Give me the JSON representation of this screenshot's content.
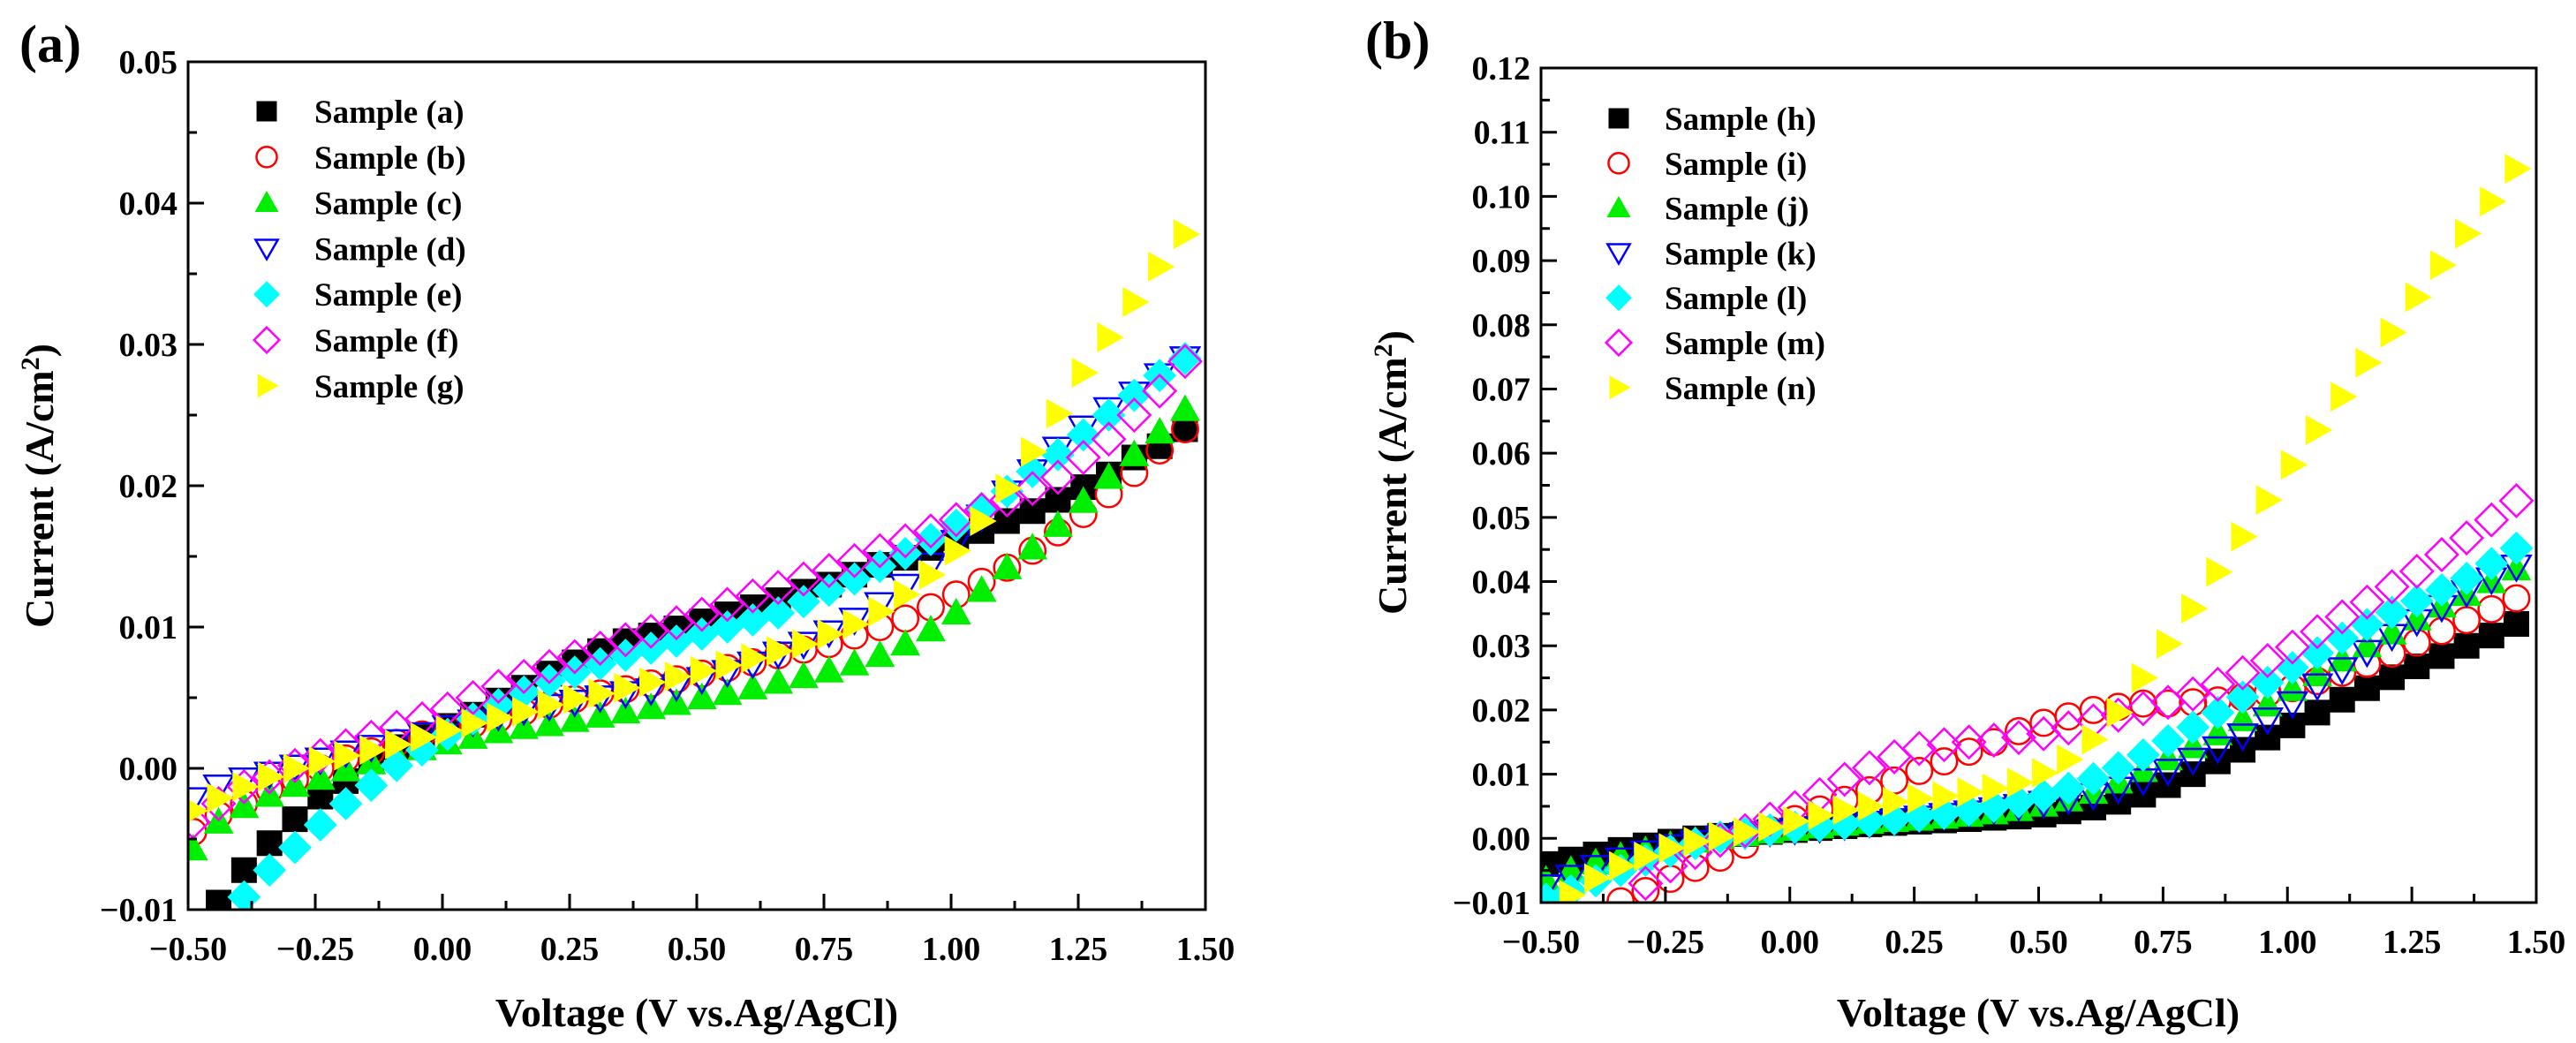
{
  "chart_data": [
    {
      "type": "scatter",
      "panel_label": "(a)",
      "xlabel": "Voltage (V vs.Ag/AgCl)",
      "ylabel": "Current (A/cm",
      "ylabel_sup": "2",
      "ylabel_close": ")",
      "xlim": [
        -0.5,
        1.5
      ],
      "ylim": [
        -0.01,
        0.05
      ],
      "xticks": [
        -0.5,
        -0.25,
        0,
        0.25,
        0.5,
        0.75,
        1.0,
        1.25,
        1.5
      ],
      "xtick_labels": [
        "−0.50",
        "−0.25",
        "0.00",
        "0.25",
        "0.50",
        "0.75",
        "1.00",
        "1.25",
        "1.50"
      ],
      "yticks": [
        -0.01,
        0,
        0.01,
        0.02,
        0.03,
        0.04,
        0.05
      ],
      "ytick_labels": [
        "−0.01",
        "0.00",
        "0.01",
        "0.02",
        "0.03",
        "0.04",
        "0.05"
      ],
      "legend_position": "top-left",
      "x": [
        -0.49,
        -0.44,
        -0.39,
        -0.34,
        -0.29,
        -0.24,
        -0.19,
        -0.14,
        -0.09,
        -0.04,
        0.01,
        0.06,
        0.11,
        0.16,
        0.21,
        0.26,
        0.31,
        0.36,
        0.41,
        0.46,
        0.51,
        0.56,
        0.61,
        0.66,
        0.71,
        0.76,
        0.81,
        0.86,
        0.91,
        0.96,
        1.01,
        1.06,
        1.11,
        1.16,
        1.21,
        1.26,
        1.31,
        1.36,
        1.41,
        1.46
      ],
      "series": [
        {
          "name": "Sample (a)",
          "marker": "square",
          "color": "#000000",
          "filled": true,
          "values": [
            null,
            -0.0095,
            -0.0072,
            -0.0053,
            -0.0036,
            -0.002,
            -0.0009,
            0.0005,
            0.0015,
            0.0022,
            0.003,
            0.0038,
            0.0048,
            0.0057,
            0.0067,
            0.0075,
            0.0083,
            0.009,
            0.0094,
            0.0099,
            0.0104,
            0.0109,
            0.0114,
            0.0119,
            0.0125,
            0.013,
            0.0137,
            0.0144,
            0.0149,
            0.0156,
            0.0163,
            0.0168,
            0.0175,
            0.0182,
            0.019,
            0.0199,
            0.0208,
            0.022,
            0.0228,
            0.024
          ]
        },
        {
          "name": "Sample (b)",
          "marker": "circle",
          "color": "#ff0000",
          "filled": false,
          "values": [
            -0.0045,
            -0.0033,
            -0.0025,
            -0.0015,
            -0.0008,
            0.0,
            0.0007,
            0.0012,
            0.0018,
            0.0024,
            0.0028,
            0.0031,
            0.0035,
            0.004,
            0.0045,
            0.0049,
            0.0053,
            0.0056,
            0.006,
            0.0063,
            0.0067,
            0.0071,
            0.0075,
            0.008,
            0.0084,
            0.0088,
            0.0094,
            0.01,
            0.0106,
            0.0114,
            0.0123,
            0.0132,
            0.0142,
            0.0154,
            0.0167,
            0.018,
            0.0194,
            0.0209,
            0.0225,
            0.024
          ]
        },
        {
          "name": "Sample (c)",
          "marker": "triangle-up",
          "color": "#00ee00",
          "filled": true,
          "values": [
            -0.0057,
            -0.0038,
            -0.0027,
            -0.0019,
            -0.0012,
            -0.0007,
            -0.0001,
            0.0004,
            0.0009,
            0.0014,
            0.0018,
            0.0022,
            0.0026,
            0.0029,
            0.0031,
            0.0034,
            0.0037,
            0.004,
            0.0043,
            0.0046,
            0.005,
            0.0053,
            0.0057,
            0.0061,
            0.0065,
            0.0069,
            0.0074,
            0.008,
            0.0088,
            0.0098,
            0.011,
            0.0126,
            0.0142,
            0.0156,
            0.0172,
            0.0189,
            0.0206,
            0.0222,
            0.0238,
            0.0254
          ]
        },
        {
          "name": "Sample (d)",
          "marker": "triangle-down",
          "color": "#0000ff",
          "filled": false,
          "values": [
            -0.0022,
            -0.0013,
            -0.0008,
            -0.0004,
            0.0001,
            0.0006,
            0.0011,
            0.0015,
            0.0019,
            0.0024,
            0.0029,
            0.0033,
            0.0037,
            0.0041,
            0.0044,
            0.0047,
            0.005,
            0.0053,
            0.0055,
            0.0058,
            0.0063,
            0.0068,
            0.0074,
            0.0081,
            0.0088,
            0.0096,
            0.0105,
            0.0116,
            0.0129,
            0.0144,
            0.016,
            0.0178,
            0.0195,
            0.021,
            0.0226,
            0.0241,
            0.0254,
            0.0265,
            0.0278,
            0.029
          ]
        },
        {
          "name": "Sample (e)",
          "marker": "diamond",
          "color": "#00ffff",
          "filled": true,
          "values": [
            null,
            null,
            -0.0091,
            -0.0072,
            -0.0056,
            -0.004,
            -0.0025,
            -0.0012,
            0.0002,
            0.0013,
            0.0024,
            0.0035,
            0.0045,
            0.0054,
            0.0062,
            0.0068,
            0.0074,
            0.008,
            0.0085,
            0.009,
            0.0095,
            0.01,
            0.0105,
            0.011,
            0.0118,
            0.0126,
            0.0134,
            0.0143,
            0.0152,
            0.0162,
            0.0172,
            0.0184,
            0.0196,
            0.021,
            0.0222,
            0.0236,
            0.025,
            0.0264,
            0.0278,
            0.029
          ]
        },
        {
          "name": "Sample (f)",
          "marker": "diamond",
          "color": "#ff00ff",
          "filled": false,
          "values": [
            -0.0038,
            -0.0025,
            -0.0013,
            -0.0006,
            0.0002,
            0.0009,
            0.0016,
            0.0022,
            0.0029,
            0.0035,
            0.0042,
            0.005,
            0.0058,
            0.0065,
            0.0072,
            0.0079,
            0.0085,
            0.0091,
            0.0097,
            0.0103,
            0.0109,
            0.0116,
            0.0122,
            0.0128,
            0.0134,
            0.014,
            0.0147,
            0.0154,
            0.0161,
            0.0168,
            0.0176,
            0.0183,
            0.019,
            0.0198,
            0.0206,
            0.022,
            0.0233,
            0.025,
            0.0267,
            0.0288
          ]
        },
        {
          "name": "Sample (g)",
          "marker": "triangle-right",
          "color": "#ffff00",
          "filled": true,
          "values": [
            -0.003,
            -0.0021,
            -0.0013,
            -0.0006,
            0.0,
            0.0005,
            0.0009,
            0.0013,
            0.0017,
            0.0022,
            0.0027,
            0.0032,
            0.0036,
            0.004,
            0.0045,
            0.0049,
            0.0053,
            0.0057,
            0.0061,
            0.0065,
            0.0069,
            0.0073,
            0.0078,
            0.0083,
            0.0088,
            0.0095,
            0.0102,
            0.0111,
            0.0123,
            0.0137,
            0.0154,
            0.0175,
            0.0198,
            0.0224,
            0.0251,
            0.028,
            0.0305,
            0.033,
            0.0355,
            0.0378
          ]
        }
      ]
    },
    {
      "type": "scatter",
      "panel_label": "(b)",
      "xlabel": "Voltage (V vs.Ag/AgCl)",
      "ylabel": "Current (A/cm",
      "ylabel_sup": "2",
      "ylabel_close": ")",
      "xlim": [
        -0.5,
        1.5
      ],
      "ylim": [
        -0.01,
        0.12
      ],
      "xticks": [
        -0.5,
        -0.25,
        0,
        0.25,
        0.5,
        0.75,
        1.0,
        1.25,
        1.5
      ],
      "xtick_labels": [
        "−0.50",
        "−0.25",
        "0.00",
        "0.25",
        "0.50",
        "0.75",
        "1.00",
        "1.25",
        "1.50"
      ],
      "yticks": [
        -0.01,
        0,
        0.01,
        0.02,
        0.03,
        0.04,
        0.05,
        0.06,
        0.07,
        0.08,
        0.09,
        0.1,
        0.11,
        0.12
      ],
      "ytick_labels": [
        "−0.01",
        "0.00",
        "0.01",
        "0.02",
        "0.03",
        "0.04",
        "0.05",
        "0.06",
        "0.07",
        "0.08",
        "0.09",
        "0.10",
        "0.11",
        "0.12"
      ],
      "legend_position": "top-left",
      "x": [
        -0.49,
        -0.44,
        -0.39,
        -0.34,
        -0.29,
        -0.24,
        -0.19,
        -0.14,
        -0.09,
        -0.04,
        0.01,
        0.06,
        0.11,
        0.16,
        0.21,
        0.26,
        0.31,
        0.36,
        0.41,
        0.46,
        0.51,
        0.56,
        0.61,
        0.66,
        0.71,
        0.76,
        0.81,
        0.86,
        0.91,
        0.96,
        1.01,
        1.06,
        1.11,
        1.16,
        1.21,
        1.26,
        1.31,
        1.36,
        1.41,
        1.46
      ],
      "series": [
        {
          "name": "Sample (h)",
          "marker": "square",
          "color": "#000000",
          "filled": true,
          "values": [
            -0.004,
            -0.0033,
            -0.0025,
            -0.0018,
            -0.0011,
            -0.0005,
            0.0,
            0.0004,
            0.0007,
            0.001,
            0.0013,
            0.0016,
            0.0019,
            0.0022,
            0.0024,
            0.0026,
            0.0028,
            0.003,
            0.0032,
            0.0034,
            0.0037,
            0.0042,
            0.0048,
            0.0057,
            0.0068,
            0.0083,
            0.01,
            0.012,
            0.0138,
            0.0157,
            0.0176,
            0.0196,
            0.0216,
            0.0234,
            0.0251,
            0.0268,
            0.0284,
            0.03,
            0.0316,
            0.0334
          ]
        },
        {
          "name": "Sample (i)",
          "marker": "circle",
          "color": "#ff0000",
          "filled": false,
          "values": [
            null,
            null,
            null,
            -0.0098,
            -0.0082,
            -0.0063,
            -0.0046,
            -0.003,
            -0.001,
            0.0013,
            0.003,
            0.0045,
            0.006,
            0.0075,
            0.009,
            0.0105,
            0.012,
            0.0135,
            0.015,
            0.0167,
            0.018,
            0.019,
            0.02,
            0.0205,
            0.021,
            0.021,
            0.0212,
            0.0215,
            0.022,
            0.0226,
            0.0234,
            0.0245,
            0.0258,
            0.0272,
            0.0288,
            0.0305,
            0.0323,
            0.034,
            0.0357,
            0.0374
          ]
        },
        {
          "name": "Sample (j)",
          "marker": "triangle-up",
          "color": "#00ee00",
          "filled": true,
          "values": [
            -0.0065,
            -0.005,
            -0.0038,
            -0.0028,
            -0.0019,
            -0.0011,
            -0.0004,
            0.0002,
            0.0006,
            0.001,
            0.0014,
            0.0018,
            0.0022,
            0.0025,
            0.0028,
            0.003,
            0.0033,
            0.0036,
            0.004,
            0.0045,
            0.0052,
            0.006,
            0.0072,
            0.0088,
            0.0106,
            0.0124,
            0.0143,
            0.0163,
            0.0185,
            0.0208,
            0.0232,
            0.0255,
            0.0278,
            0.03,
            0.032,
            0.0342,
            0.0362,
            0.038,
            0.04,
            0.042
          ]
        },
        {
          "name": "Sample (k)",
          "marker": "triangle-down",
          "color": "#0000ff",
          "filled": false,
          "values": [
            -0.0075,
            -0.006,
            -0.0045,
            -0.0033,
            -0.0022,
            -0.0013,
            -0.0006,
            0.0001,
            0.0006,
            0.001,
            0.0013,
            0.0016,
            0.002,
            0.0024,
            0.0028,
            0.0032,
            0.0036,
            0.004,
            0.0045,
            0.005,
            0.0055,
            0.006,
            0.0067,
            0.0077,
            0.009,
            0.0105,
            0.0122,
            0.014,
            0.016,
            0.0185,
            0.021,
            0.0238,
            0.0263,
            0.029,
            0.0315,
            0.0338,
            0.036,
            0.0383,
            0.0403,
            0.0423
          ]
        },
        {
          "name": "Sample (l)",
          "marker": "diamond",
          "color": "#00ffff",
          "filled": true,
          "values": [
            -0.0095,
            -0.0082,
            -0.0066,
            -0.005,
            -0.0034,
            -0.002,
            -0.0008,
            0.0002,
            0.0008,
            0.0013,
            0.0017,
            0.002,
            0.0023,
            0.0027,
            0.003,
            0.0035,
            0.0039,
            0.0044,
            0.005,
            0.0057,
            0.0066,
            0.0078,
            0.0093,
            0.011,
            0.013,
            0.0152,
            0.0173,
            0.0196,
            0.022,
            0.0243,
            0.0266,
            0.0289,
            0.0312,
            0.0333,
            0.0352,
            0.037,
            0.0387,
            0.0405,
            0.0428,
            0.0452
          ]
        },
        {
          "name": "Sample (m)",
          "marker": "diamond",
          "color": "#ff00ff",
          "filled": false,
          "values": [
            null,
            null,
            null,
            null,
            -0.007,
            -0.0043,
            -0.0022,
            -0.0003,
            0.0012,
            0.003,
            0.0048,
            0.0068,
            0.0092,
            0.011,
            0.0127,
            0.014,
            0.0146,
            0.015,
            0.0153,
            0.0157,
            0.0163,
            0.0172,
            0.0183,
            0.0192,
            0.0202,
            0.0212,
            0.0225,
            0.024,
            0.0258,
            0.0277,
            0.0298,
            0.0322,
            0.0345,
            0.0368,
            0.0392,
            0.0416,
            0.0442,
            0.0468,
            0.0496,
            0.0526
          ]
        },
        {
          "name": "Sample (n)",
          "marker": "triangle-right",
          "color": "#ffff00",
          "filled": true,
          "values": [
            null,
            -0.0088,
            -0.0062,
            -0.0043,
            -0.0028,
            -0.0015,
            -0.0005,
            0.0003,
            0.001,
            0.0018,
            0.0027,
            0.0036,
            0.0044,
            0.005,
            0.0057,
            0.0062,
            0.0066,
            0.0072,
            0.0078,
            0.0087,
            0.0102,
            0.0123,
            0.0154,
            0.0196,
            0.025,
            0.0303,
            0.0358,
            0.0415,
            0.047,
            0.0527,
            0.0582,
            0.0636,
            0.0688,
            0.0741,
            0.0788,
            0.0843,
            0.0893,
            0.0942,
            0.0992,
            0.1043
          ]
        }
      ]
    }
  ]
}
